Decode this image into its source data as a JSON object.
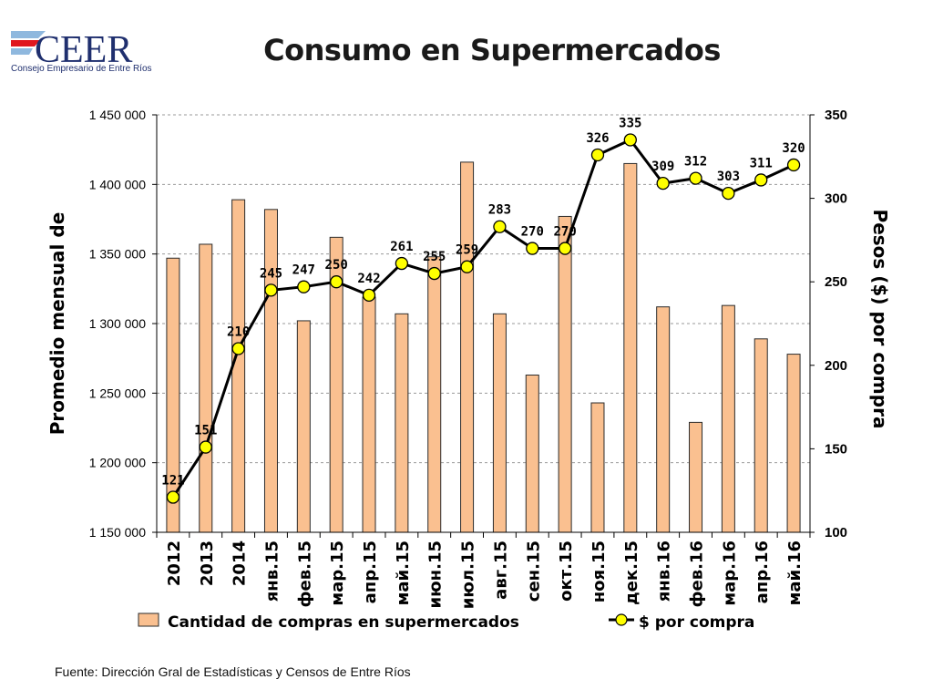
{
  "header": {
    "logo_text": "CEER",
    "logo_subtitle": "Consejo Empresario de Entre Ríos"
  },
  "footer": {
    "source": "Fuente: Dirección Gral de Estadísticas y Censos de Entre Ríos"
  },
  "colors": {
    "bar_fill": "#fac090",
    "bar_stroke": "#2b2b2b",
    "line": "#000000",
    "marker_fill": "#ffff00",
    "logo_blue": "#1f2f6e",
    "logo_red": "#e0161e",
    "logo_lightblue": "#8fb8de"
  },
  "chart_data": {
    "type": "bar",
    "title": "Consumo en Supermercados",
    "categories": [
      "2012",
      "2013",
      "2014",
      "янв.15",
      "фев.15",
      "мар.15",
      "апр.15",
      "май.15",
      "июн.15",
      "июл.15",
      "авг.15",
      "сен.15",
      "окт.15",
      "ноя.15",
      "дек.15",
      "янв.16",
      "фев.16",
      "мар.16",
      "апр.16",
      "май.16"
    ],
    "series": [
      {
        "name": "Cantidad de compras en supermercados",
        "type": "bar",
        "axis": "left",
        "values": [
          1347000,
          1357000,
          1389000,
          1382000,
          1302000,
          1362000,
          1319000,
          1307000,
          1348000,
          1416000,
          1307000,
          1263000,
          1377000,
          1243000,
          1415000,
          1312000,
          1229000,
          1313000,
          1289000,
          1278000
        ]
      },
      {
        "name": "$ por compra",
        "type": "line",
        "axis": "right",
        "values": [
          121,
          151,
          210,
          245,
          247,
          250,
          242,
          261,
          255,
          259,
          283,
          270,
          270,
          326,
          335,
          309,
          312,
          303,
          311,
          320
        ]
      }
    ],
    "ylabel": "Promedio mensual de",
    "y2label": "Pesos ($) por compra",
    "ylim": [
      1150000,
      1450000
    ],
    "yticks": [
      1150000,
      1200000,
      1250000,
      1300000,
      1350000,
      1400000,
      1450000
    ],
    "ytick_labels": [
      "1 150 000",
      "1 200 000",
      "1 250 000",
      "1 300 000",
      "1 350 000",
      "1 400 000",
      "1 450 000"
    ],
    "y2lim": [
      100,
      350
    ],
    "y2ticks": [
      100,
      150,
      200,
      250,
      300,
      350
    ],
    "y2tick_labels": [
      "100",
      "150",
      "200",
      "250",
      "300",
      "350"
    ],
    "grid": true,
    "legend": "bottom"
  }
}
